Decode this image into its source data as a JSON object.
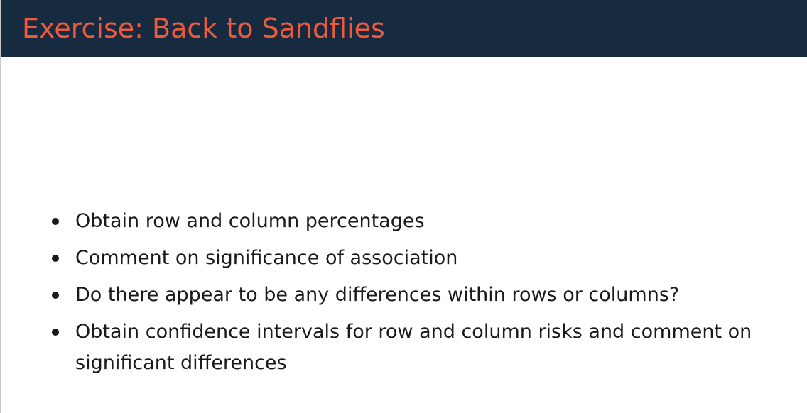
{
  "slide": {
    "title": "Exercise: Back to Sandflies",
    "colors": {
      "header_background": "#162a40",
      "title_text": "#ed5a3d",
      "body_text": "#1a1a1a"
    },
    "bullets": [
      "Obtain row and column percentages",
      "Comment on significance of association",
      "Do there appear to be any differences within rows or columns?",
      "Obtain confidence intervals for row and column risks and comment on significant differences"
    ]
  }
}
